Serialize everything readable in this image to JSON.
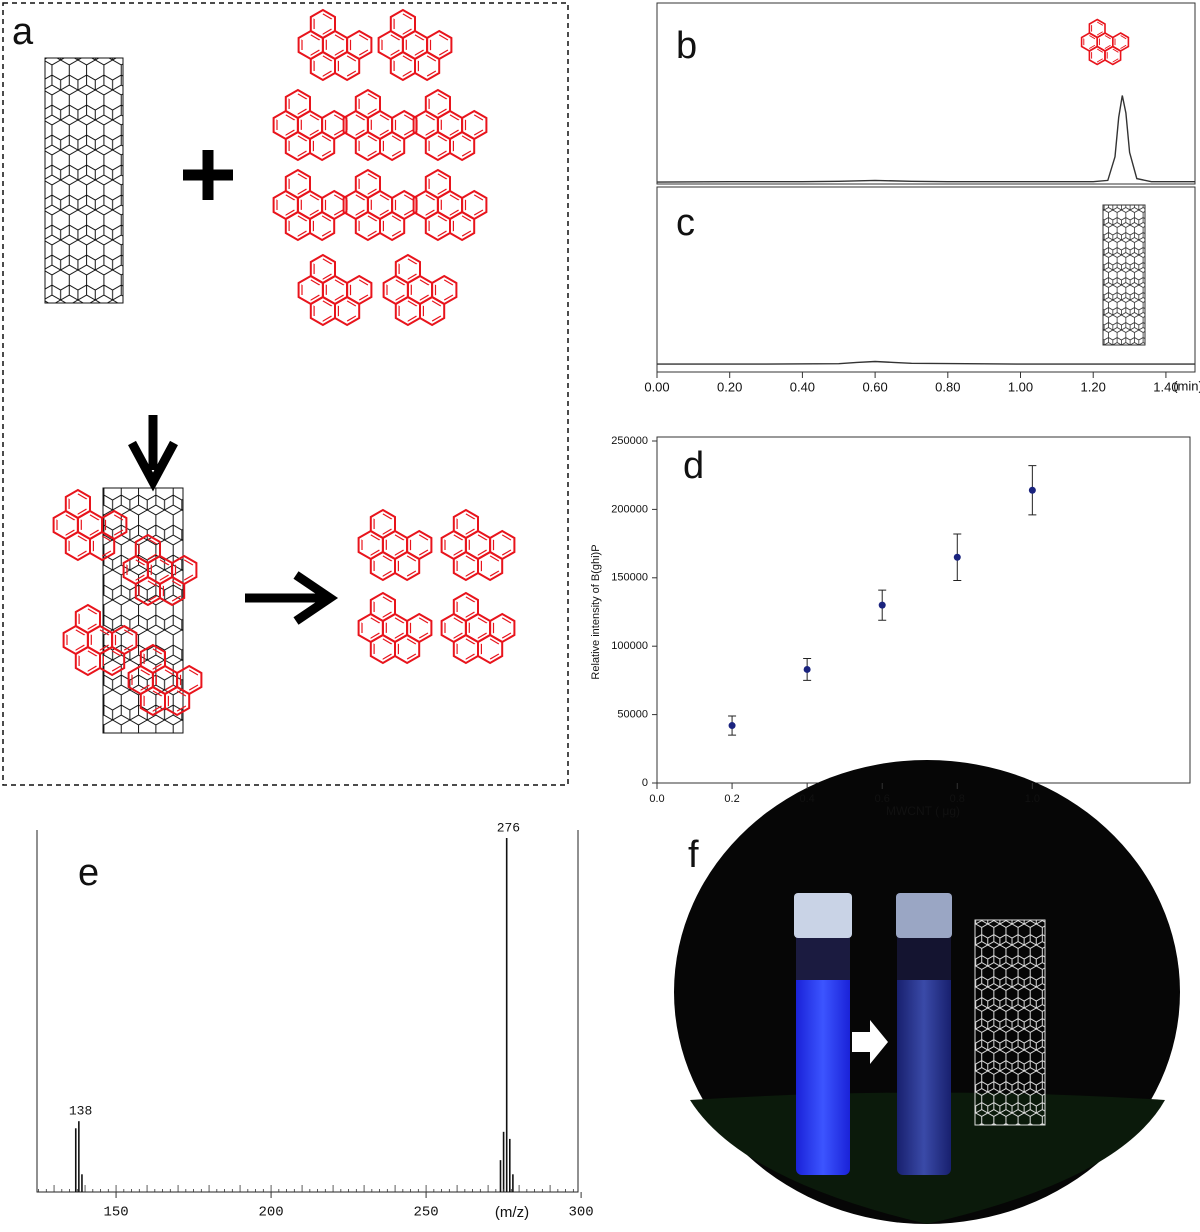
{
  "diagram": {
    "label": "a"
  },
  "photo": {
    "label": "f"
  },
  "chart_data": [
    {
      "type": "line",
      "label": "b",
      "color": "#333333",
      "x": [
        0,
        0.2,
        0.4,
        0.5,
        0.6,
        0.7,
        0.8,
        0.9,
        1.0,
        1.1,
        1.2,
        1.24,
        1.26,
        1.27,
        1.28,
        1.29,
        1.3,
        1.32,
        1.36,
        1.48
      ],
      "values": [
        1,
        1.5,
        1.5,
        2,
        3,
        2,
        1.5,
        1.5,
        1.5,
        1.5,
        1.5,
        3,
        30,
        75,
        100,
        80,
        35,
        5,
        1.5,
        1.5
      ],
      "xlim": [
        0,
        1.48
      ],
      "ylim": [
        0,
        200
      ]
    },
    {
      "type": "line",
      "label": "c",
      "color": "#333333",
      "xlabel": "(min)",
      "x": [
        0,
        0.3,
        0.5,
        0.55,
        0.6,
        0.65,
        0.7,
        0.85,
        1.0,
        1.48
      ],
      "values": [
        1,
        1,
        1.5,
        3,
        4,
        3,
        2,
        1.5,
        1,
        1
      ],
      "xlim": [
        0,
        1.48
      ],
      "ylim": [
        0,
        200
      ],
      "xticks": [
        {
          "value": 0,
          "label": "0.00"
        },
        {
          "value": 0.2,
          "label": "0.20"
        },
        {
          "value": 0.4,
          "label": "0.40"
        },
        {
          "value": 0.6,
          "label": "0.60"
        },
        {
          "value": 0.8,
          "label": "0.80"
        },
        {
          "value": 1,
          "label": "1.00"
        },
        {
          "value": 1.2,
          "label": "1.20"
        },
        {
          "value": 1.4,
          "label": "1.40"
        }
      ]
    },
    {
      "type": "scatter",
      "label": "d",
      "color": "#1a237e",
      "xlabel": "MWCNT ( μg)",
      "ylabel": "Relative intensity of B(ghi)P",
      "x": [
        0.2,
        0.4,
        0.6,
        0.8,
        1.0
      ],
      "values": [
        42000,
        83000,
        130000,
        165000,
        214000
      ],
      "errors": [
        7000,
        8000,
        11000,
        17000,
        18000
      ],
      "xlim": [
        0,
        1.42
      ],
      "ylim": [
        0,
        250000
      ],
      "xticks": [
        {
          "value": 0,
          "label": "0.0"
        },
        {
          "value": 0.2,
          "label": "0.2"
        },
        {
          "value": 0.4,
          "label": "0.4"
        },
        {
          "value": 0.6,
          "label": "0.6"
        },
        {
          "value": 0.8,
          "label": "0.8"
        },
        {
          "value": 1,
          "label": "1.0"
        }
      ],
      "yticks": [
        0,
        50000,
        100000,
        150000,
        200000,
        250000
      ]
    },
    {
      "type": "stem",
      "label": "e",
      "color": "#111111",
      "xlabel": "(m/z)",
      "x": [
        137,
        138,
        139,
        274,
        275,
        276,
        277,
        278
      ],
      "values": [
        18,
        20,
        5,
        9,
        17,
        100,
        15,
        5
      ],
      "xlim": [
        124.5,
        299
      ],
      "ylim": [
        0,
        100
      ],
      "xticks": [
        150,
        200,
        250,
        300
      ]
    }
  ]
}
